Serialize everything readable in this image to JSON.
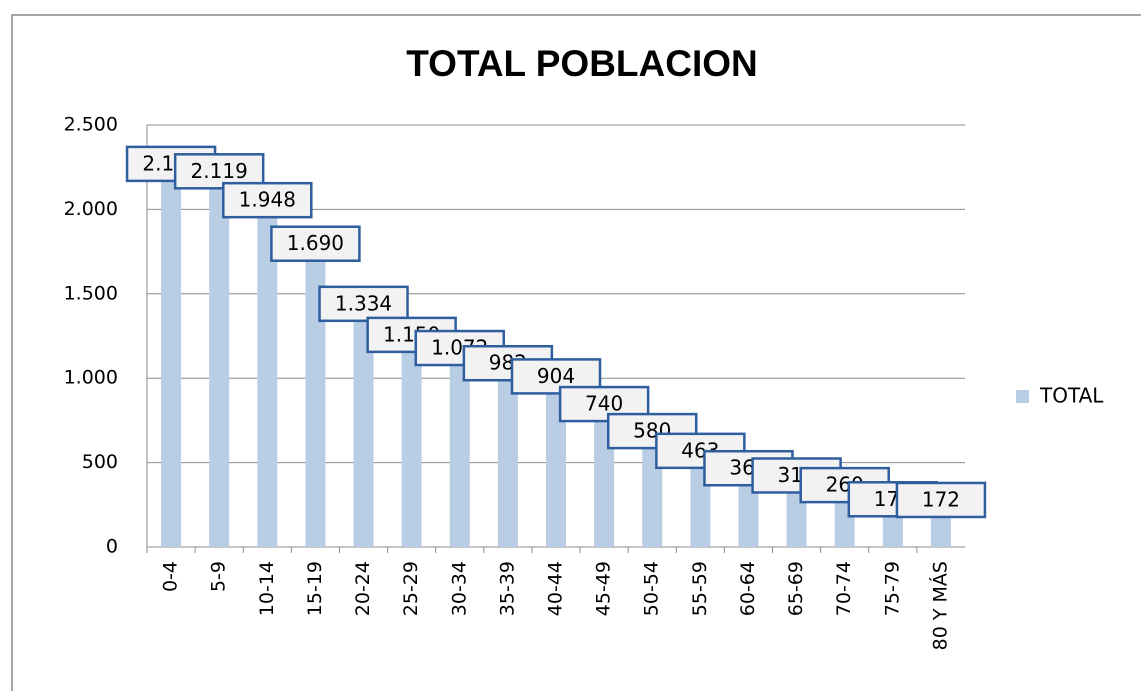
{
  "chart_data": {
    "type": "bar",
    "title": "TOTAL POBLACION",
    "categories": [
      "0-4",
      "5-9",
      "10-14",
      "15-19",
      "20-24",
      "25-29",
      "30-34",
      "35-39",
      "40-44",
      "45-49",
      "50-54",
      "55-59",
      "60-64",
      "65-69",
      "70-74",
      "75-79",
      "80 Y MÁS"
    ],
    "series": [
      {
        "name": "TOTAL",
        "color": "#b9cde5",
        "values": [
          2163,
          2119,
          1948,
          1690,
          1334,
          1150,
          1072,
          982,
          904,
          740,
          580,
          463,
          360,
          317,
          260,
          176,
          172
        ],
        "value_labels": [
          "2.163",
          "2.119",
          "1.948",
          "1.690",
          "1.334",
          "1.150",
          "1.072",
          "982",
          "904",
          "740",
          "580",
          "463",
          "360",
          "317",
          "260",
          "176",
          "172"
        ]
      }
    ],
    "ylim": [
      0,
      2500
    ],
    "yticks": [
      0,
      500,
      {
        "value": 1000,
        "label": "1.000"
      },
      {
        "value": 1500,
        "label": "1.500"
      },
      {
        "value": 2000,
        "label": "2.000"
      },
      {
        "value": 2500,
        "label": "2.500"
      }
    ],
    "grid": true,
    "legend": "right"
  }
}
